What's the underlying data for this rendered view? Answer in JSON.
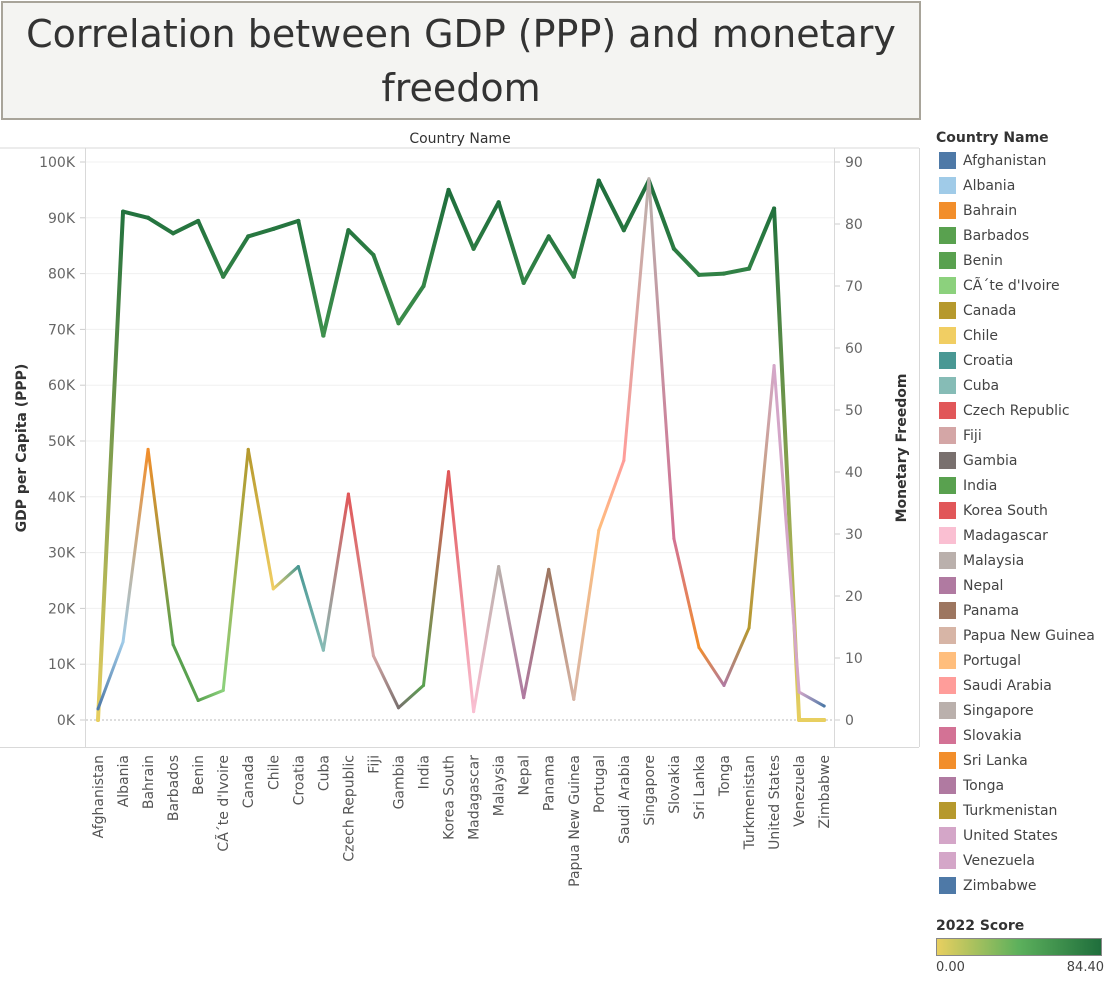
{
  "title": "Correlation between GDP (PPP) and monetary freedom",
  "chart_data": {
    "type": "line",
    "column_header": "Country Name",
    "categories": [
      "Afghanistan",
      "Albania",
      "Bahrain",
      "Barbados",
      "Benin",
      "CÃ´te d'Ivoire",
      "Canada",
      "Chile",
      "Croatia",
      "Cuba",
      "Czech Republic",
      "Fiji",
      "Gambia",
      "India",
      "Korea South",
      "Madagascar",
      "Malaysia",
      "Nepal",
      "Panama",
      "Papua New Guinea",
      "Portugal",
      "Saudi Arabia",
      "Singapore",
      "Slovakia",
      "Sri Lanka",
      "Tonga",
      "Turkmenistan",
      "United States",
      "Venezuela",
      "Zimbabwe"
    ],
    "ylabel": "GDP per Capita (PPP)",
    "y2label": "Monetary Freedom",
    "ylim": [
      0,
      100000
    ],
    "y2lim": [
      0,
      90
    ],
    "y_ticks": [
      {
        "v": 0,
        "t": "0K"
      },
      {
        "v": 10000,
        "t": "10K"
      },
      {
        "v": 20000,
        "t": "20K"
      },
      {
        "v": 30000,
        "t": "30K"
      },
      {
        "v": 40000,
        "t": "40K"
      },
      {
        "v": 50000,
        "t": "50K"
      },
      {
        "v": 60000,
        "t": "60K"
      },
      {
        "v": 70000,
        "t": "70K"
      },
      {
        "v": 80000,
        "t": "80K"
      },
      {
        "v": 90000,
        "t": "90K"
      },
      {
        "v": 100000,
        "t": "100K"
      }
    ],
    "y2_ticks": [
      {
        "v": 0,
        "t": "0"
      },
      {
        "v": 10,
        "t": "10"
      },
      {
        "v": 20,
        "t": "20"
      },
      {
        "v": 30,
        "t": "30"
      },
      {
        "v": 40,
        "t": "40"
      },
      {
        "v": 50,
        "t": "50"
      },
      {
        "v": 60,
        "t": "60"
      },
      {
        "v": 70,
        "t": "70"
      },
      {
        "v": 80,
        "t": "80"
      },
      {
        "v": 90,
        "t": "90"
      }
    ],
    "gdp_values": [
      2000,
      14000,
      48500,
      13500,
      3500,
      5300,
      48500,
      23500,
      27500,
      12500,
      40500,
      11500,
      2200,
      6200,
      44500,
      1500,
      27500,
      4000,
      27000,
      3700,
      34000,
      46500,
      97000,
      32500,
      13000,
      6200,
      16500,
      63500,
      5000,
      2500
    ],
    "gdp_colors": [
      "#4e79a7",
      "#a0cbe8",
      "#f28e2b",
      "#59a14f",
      "#59a14f",
      "#8cd17d",
      "#b6992d",
      "#f1ce63",
      "#499894",
      "#86bcb6",
      "#e15759",
      "#d4a6a6",
      "#79706e",
      "#59a14f",
      "#e15759",
      "#fabfd2",
      "#bab0ac",
      "#b07aa1",
      "#9d7660",
      "#d7b5a6",
      "#ffbe7d",
      "#ff9d9a",
      "#bab0ac",
      "#d37295",
      "#f28e2b",
      "#b07aa1",
      "#b6992d",
      "#d4a6c8",
      "#d4a6c8",
      "#4e79a7"
    ],
    "freedom_values": [
      0,
      82,
      81,
      78.5,
      80.5,
      71.5,
      78,
      79.2,
      80.5,
      62,
      79,
      75,
      64,
      70,
      85.5,
      76,
      83.5,
      70.5,
      78,
      71.5,
      87,
      79,
      87,
      76,
      71.8,
      72,
      72.8,
      82.5,
      0,
      0
    ],
    "score_legend": {
      "title": "2022 Score",
      "min_label": "0.00",
      "max_label": "84.40",
      "min": 0,
      "max": 84.4
    },
    "legend_title": "Country Name",
    "legend": [
      {
        "name": "Afghanistan",
        "color": "#4e79a7"
      },
      {
        "name": "Albania",
        "color": "#a0cbe8"
      },
      {
        "name": "Bahrain",
        "color": "#f28e2b"
      },
      {
        "name": "Barbados",
        "color": "#59a14f"
      },
      {
        "name": "Benin",
        "color": "#59a14f"
      },
      {
        "name": "CÃ´te d'Ivoire",
        "color": "#8cd17d"
      },
      {
        "name": "Canada",
        "color": "#b6992d"
      },
      {
        "name": "Chile",
        "color": "#f1ce63"
      },
      {
        "name": "Croatia",
        "color": "#499894"
      },
      {
        "name": "Cuba",
        "color": "#86bcb6"
      },
      {
        "name": "Czech Republic",
        "color": "#e15759"
      },
      {
        "name": "Fiji",
        "color": "#d4a6a6"
      },
      {
        "name": "Gambia",
        "color": "#79706e"
      },
      {
        "name": "India",
        "color": "#59a14f"
      },
      {
        "name": "Korea South",
        "color": "#e15759"
      },
      {
        "name": "Madagascar",
        "color": "#fabfd2"
      },
      {
        "name": "Malaysia",
        "color": "#bab0ac"
      },
      {
        "name": "Nepal",
        "color": "#b07aa1"
      },
      {
        "name": "Panama",
        "color": "#9d7660"
      },
      {
        "name": "Papua New Guinea",
        "color": "#d7b5a6"
      },
      {
        "name": "Portugal",
        "color": "#ffbe7d"
      },
      {
        "name": "Saudi Arabia",
        "color": "#ff9d9a"
      },
      {
        "name": "Singapore",
        "color": "#bab0ac"
      },
      {
        "name": "Slovakia",
        "color": "#d37295"
      },
      {
        "name": "Sri Lanka",
        "color": "#f28e2b"
      },
      {
        "name": "Tonga",
        "color": "#b07aa1"
      },
      {
        "name": "Turkmenistan",
        "color": "#b6992d"
      },
      {
        "name": "United States",
        "color": "#d4a6c8"
      },
      {
        "name": "Venezuela",
        "color": "#d4a6c8"
      },
      {
        "name": "Zimbabwe",
        "color": "#4e79a7"
      }
    ]
  }
}
